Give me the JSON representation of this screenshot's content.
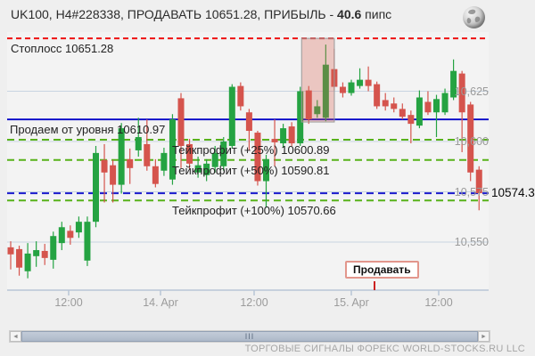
{
  "header": {
    "title_prefix": "UK100, H4#228338, ПРОДАВАТЬ 10651.28, ПРИБЫЛЬ - ",
    "profit_pips": "40.6",
    "title_suffix": " пипс"
  },
  "chart_data": {
    "type": "candlestick",
    "symbol": "UK100",
    "timeframe_id": "H4#228338",
    "direction": "ПРОДАВАТЬ",
    "profit_pips": 40.6,
    "levels": [
      {
        "id": "stoploss",
        "label": "Стоплосс 10651.28",
        "price": 10651.28,
        "style": "dashed",
        "color": "#ee1111"
      },
      {
        "id": "entry",
        "label": "Продаем от уровня 10610.97",
        "price": 10610.97,
        "style": "solid",
        "color": "#0404c8"
      },
      {
        "id": "tp1",
        "label": "Тейкпрофит (+25%) 10600.89",
        "price": 10600.89,
        "style": "dashed",
        "color": "#58b21a"
      },
      {
        "id": "tp2",
        "label": "Тейкпрофит (+50%) 10590.81",
        "price": 10590.81,
        "style": "dashed",
        "color": "#58b21a"
      },
      {
        "id": "current",
        "label": "10574.3",
        "price": 10574.3,
        "style": "dashed",
        "color": "#1919cd"
      },
      {
        "id": "tp3",
        "label": "Тейкпрофит (+100%) 10570.66",
        "price": 10570.66,
        "style": "dashed",
        "color": "#58b21a"
      }
    ],
    "current_price_label": "10574.3",
    "y_axis": {
      "ticks": [
        10625,
        10600,
        10575,
        10550
      ],
      "labels": [
        "10,625",
        "10,600",
        "10,575",
        "10,550"
      ]
    },
    "x_axis": {
      "labels": [
        "12:00",
        "14. Apr",
        "12:00",
        "15. Apr",
        "12:00"
      ]
    },
    "sell_marker": {
      "label": "Продавать"
    },
    "highlight_zone": {
      "start_index": 35,
      "end_index": 37,
      "top_price": 10651.28,
      "bottom_price": 10609.7
    },
    "colors": {
      "up": "#25a342",
      "down": "#d5544d",
      "grid": "#c8d4e2",
      "axis": "#b9c6d6"
    },
    "candles_ohlc": [
      [
        10547.4,
        10550.4,
        10536.4,
        10543.9
      ],
      [
        10546.5,
        10548.2,
        10533.3,
        10537.3
      ],
      [
        10535.5,
        10549.5,
        10532.0,
        10544.3
      ],
      [
        10543.0,
        10550.4,
        10537.7,
        10546.0
      ],
      [
        10545.6,
        10549.1,
        10538.6,
        10542.1
      ],
      [
        10541.2,
        10555.2,
        10536.8,
        10553.0
      ],
      [
        10549.5,
        10560.1,
        10546.0,
        10557.4
      ],
      [
        10555.6,
        10558.3,
        10548.7,
        10552.1
      ],
      [
        10554.8,
        10562.7,
        10552.1,
        10560.1
      ],
      [
        10540.8,
        10562.7,
        10538.1,
        10560.1
      ],
      [
        10560.1,
        10597.8,
        10557.4,
        10594.3
      ],
      [
        10590.8,
        10598.7,
        10569.7,
        10584.6
      ],
      [
        10588.2,
        10590.8,
        10569.7,
        10578.5
      ],
      [
        10578.5,
        10609.2,
        10574.1,
        10606.6
      ],
      [
        10591.2,
        10596.5,
        10578.9,
        10586.8
      ],
      [
        10595.6,
        10611.8,
        10592.5,
        10602.2
      ],
      [
        10598.7,
        10611.0,
        10585.5,
        10587.7
      ],
      [
        10587.7,
        10591.2,
        10577.2,
        10578.9
      ],
      [
        10585.5,
        10596.9,
        10582.9,
        10594.3
      ],
      [
        10581.1,
        10613.6,
        10578.5,
        10611.0
      ],
      [
        10621.5,
        10624.1,
        10586.8,
        10597.8
      ],
      [
        10598.7,
        10601.3,
        10586.4,
        10589.0
      ],
      [
        10584.6,
        10592.5,
        10582.0,
        10588.2
      ],
      [
        10583.3,
        10591.2,
        10580.3,
        10589.0
      ],
      [
        10587.3,
        10597.8,
        10584.6,
        10594.3
      ],
      [
        10587.7,
        10602.2,
        10585.5,
        10600.0
      ],
      [
        10597.8,
        10628.5,
        10596.5,
        10627.2
      ],
      [
        10627.6,
        10629.4,
        10615.4,
        10617.5
      ],
      [
        10614.5,
        10616.2,
        10595.6,
        10605.3
      ],
      [
        10604.4,
        10605.3,
        10578.1,
        10580.3
      ],
      [
        10580.3,
        10593.4,
        10567.1,
        10591.2
      ],
      [
        10601.3,
        10611.0,
        10587.7,
        10599.6
      ],
      [
        10599.1,
        10608.8,
        10596.9,
        10606.6
      ],
      [
        10607.5,
        10609.6,
        10597.8,
        10599.1
      ],
      [
        10599.1,
        10627.2,
        10597.8,
        10625.0
      ],
      [
        10625.4,
        10627.6,
        10608.8,
        10611.0
      ],
      [
        10613.6,
        10620.6,
        10611.8,
        10617.5
      ],
      [
        10611.8,
        10648.2,
        10610.1,
        10638.2
      ],
      [
        10636.0,
        10646.1,
        10625.4,
        10627.2
      ],
      [
        10627.2,
        10629.4,
        10621.9,
        10624.1
      ],
      [
        10624.1,
        10630.7,
        10622.8,
        10629.4
      ],
      [
        10627.6,
        10636.4,
        10626.3,
        10630.7
      ],
      [
        10630.7,
        10637.3,
        10625.0,
        10627.6
      ],
      [
        10628.5,
        10629.8,
        10616.2,
        10617.5
      ],
      [
        10620.6,
        10624.1,
        10615.4,
        10617.5
      ],
      [
        10618.9,
        10621.9,
        10614.5,
        10616.2
      ],
      [
        10616.2,
        10618.9,
        10611.0,
        10612.3
      ],
      [
        10613.2,
        10615.4,
        10599.1,
        10608.8
      ],
      [
        10607.9,
        10625.4,
        10606.6,
        10621.9
      ],
      [
        10619.7,
        10625.0,
        10613.2,
        10614.5
      ],
      [
        10614.5,
        10623.2,
        10602.2,
        10621.1
      ],
      [
        10614.5,
        10626.3,
        10613.2,
        10624.1
      ],
      [
        10621.9,
        10640.8,
        10620.6,
        10635.1
      ],
      [
        10633.8,
        10635.1,
        10594.7,
        10614.5
      ],
      [
        10618.4,
        10619.7,
        10580.3,
        10584.6
      ],
      [
        10586.0,
        10587.7,
        10565.8,
        10574.3
      ]
    ]
  },
  "scrollbar": {
    "left_arrow": "◄",
    "right_arrow": "►",
    "grip": "III"
  },
  "footer": {
    "text": "ТОРГОВЫЕ СИГНАЛЫ ФОРЕКС WORLD-STOCKS.RU LLC"
  }
}
